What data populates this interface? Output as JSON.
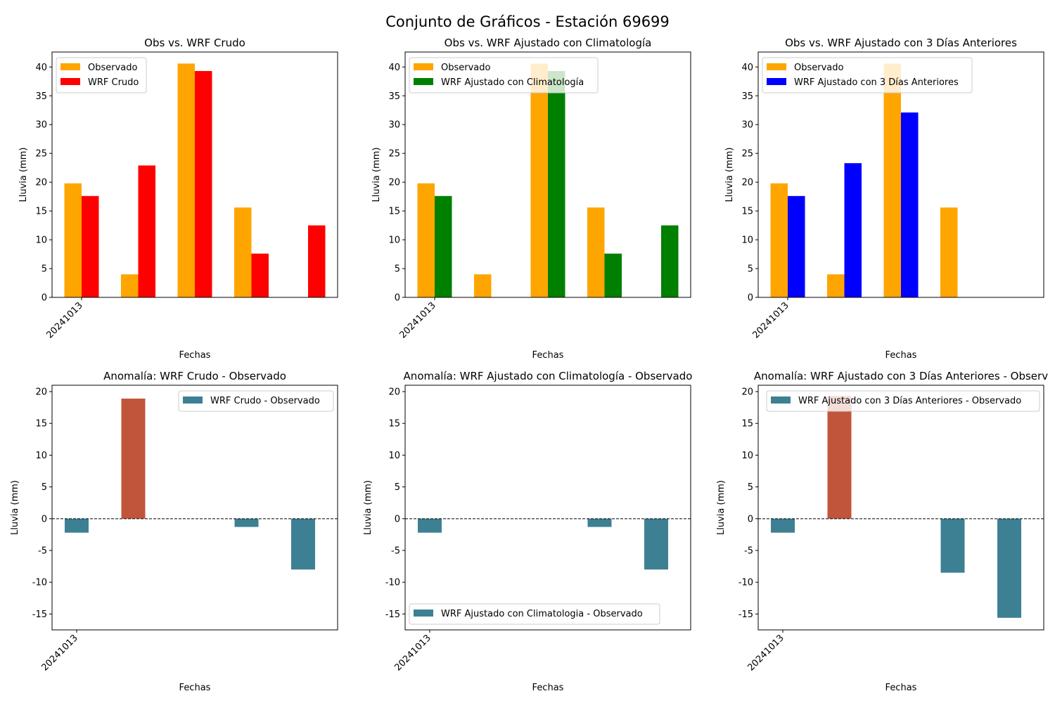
{
  "figure": {
    "suptitle": "Conjunto de Gráficos - Estación 69699"
  },
  "chart_data": [
    {
      "type": "bar",
      "title": "Obs vs. WRF Crudo",
      "xlabel": "Fechas",
      "ylabel": "Lluvia (mm)",
      "x_tick_labels": [
        "20241013"
      ],
      "ylim": [
        0,
        42.6
      ],
      "y_ticks": [
        0,
        5,
        10,
        15,
        20,
        25,
        30,
        35,
        40
      ],
      "legend_position": "upper-left",
      "series": [
        {
          "name": "Observado",
          "color": "#ffa500",
          "values": [
            19.8,
            4.0,
            40.6,
            15.6,
            0
          ]
        },
        {
          "name": "WRF Crudo",
          "color": "#ff0000",
          "values": [
            17.6,
            22.9,
            39.3,
            7.6,
            12.5
          ]
        }
      ]
    },
    {
      "type": "bar",
      "title": "Obs vs. WRF Ajustado con Climatología",
      "xlabel": "Fechas",
      "ylabel": "Lluvia (mm)",
      "x_tick_labels": [
        "20241013"
      ],
      "ylim": [
        0,
        42.6
      ],
      "y_ticks": [
        0,
        5,
        10,
        15,
        20,
        25,
        30,
        35,
        40
      ],
      "legend_position": "upper-left",
      "series": [
        {
          "name": "Observado",
          "color": "#ffa500",
          "values": [
            19.8,
            4.0,
            40.6,
            15.6,
            0
          ]
        },
        {
          "name": "WRF Ajustado con Climatología",
          "color": "#008000",
          "values": [
            17.6,
            0,
            39.3,
            7.6,
            12.5
          ]
        }
      ]
    },
    {
      "type": "bar",
      "title": "Obs vs. WRF Ajustado con 3 Días Anteriores",
      "xlabel": "Fechas",
      "ylabel": "Lluvia (mm)",
      "x_tick_labels": [
        "20241013"
      ],
      "ylim": [
        0,
        42.6
      ],
      "y_ticks": [
        0,
        5,
        10,
        15,
        20,
        25,
        30,
        35,
        40
      ],
      "legend_position": "upper-left",
      "series": [
        {
          "name": "Observado",
          "color": "#ffa500",
          "values": [
            19.8,
            4.0,
            40.6,
            15.6,
            0
          ]
        },
        {
          "name": "WRF Ajustado con 3 Días Anteriores",
          "color": "#0000ff",
          "values": [
            17.6,
            23.3,
            32.1,
            0,
            0
          ]
        }
      ]
    },
    {
      "type": "bar",
      "title": "Anomalía: WRF Crudo - Observado",
      "xlabel": "Fechas",
      "ylabel": "Lluvia (mm)",
      "x_tick_labels": [
        "20241013"
      ],
      "ylim": [
        -17.5,
        21
      ],
      "y_ticks": [
        -15,
        -10,
        -5,
        0,
        5,
        10,
        15,
        20
      ],
      "zero_line": true,
      "legend_position": "upper-right",
      "positive_color": "#c1553b",
      "negative_color": "#3e8093",
      "series": [
        {
          "name": "WRF Crudo - Observado",
          "values": [
            -2.2,
            18.9,
            0,
            -1.3,
            -8.0
          ]
        }
      ]
    },
    {
      "type": "bar",
      "title": "Anomalía: WRF Ajustado con Climatología - Observado",
      "xlabel": "Fechas",
      "ylabel": "Lluvia (mm)",
      "x_tick_labels": [
        "20241013"
      ],
      "ylim": [
        -17.5,
        21
      ],
      "y_ticks": [
        -15,
        -10,
        -5,
        0,
        5,
        10,
        15,
        20
      ],
      "zero_line": true,
      "legend_position": "lower-left",
      "positive_color": "#c1553b",
      "negative_color": "#3e8093",
      "series": [
        {
          "name": "WRF Ajustado con Climatologia - Observado",
          "values": [
            -2.2,
            0,
            0,
            -1.3,
            -8.0
          ]
        }
      ]
    },
    {
      "type": "bar",
      "title": "Anomalía: WRF Ajustado con 3 Días Anteriores - Observ",
      "xlabel": "Fechas",
      "ylabel": "Lluvia (mm)",
      "x_tick_labels": [
        "20241013"
      ],
      "ylim": [
        -17.5,
        21
      ],
      "y_ticks": [
        -15,
        -10,
        -5,
        0,
        5,
        10,
        15,
        20
      ],
      "zero_line": true,
      "legend_position": "upper-right",
      "positive_color": "#c1553b",
      "negative_color": "#3e8093",
      "series": [
        {
          "name": "WRF Ajustado con 3 Días Anteriores - Observado",
          "values": [
            -2.2,
            19.3,
            0,
            -8.5,
            -15.6
          ]
        }
      ]
    }
  ]
}
